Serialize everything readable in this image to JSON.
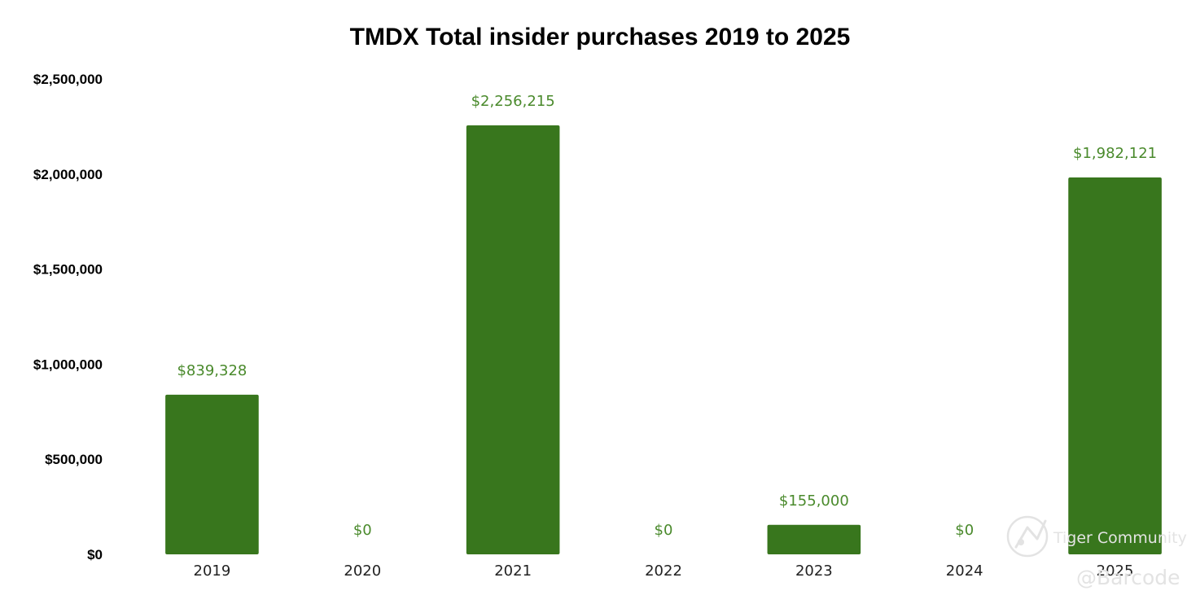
{
  "chart_data": {
    "type": "bar",
    "title": "TMDX Total insider purchases 2019 to 2025",
    "xlabel": "",
    "ylabel": "",
    "categories": [
      "2019",
      "2020",
      "2021",
      "2022",
      "2023",
      "2024",
      "2025"
    ],
    "values": [
      839328,
      0,
      2256215,
      0,
      155000,
      0,
      1982121
    ],
    "data_labels": [
      "$839,328",
      "$0",
      "$2,256,215",
      "$0",
      "$155,000",
      "$0",
      "$1,982,121"
    ],
    "ylim": [
      0,
      2500000
    ],
    "yticks": [
      0,
      500000,
      1000000,
      1500000,
      2000000,
      2500000
    ],
    "ytick_labels": [
      "$0",
      "$500,000",
      "$1,000,000",
      "$1,500,000",
      "$2,000,000",
      "$2,500,000"
    ],
    "grid": false,
    "legend": "none",
    "bar_color": "#38761d",
    "label_color": "#4a8a2c"
  },
  "watermark": {
    "brand": "Tiger Community",
    "handle": "@Barcode"
  }
}
